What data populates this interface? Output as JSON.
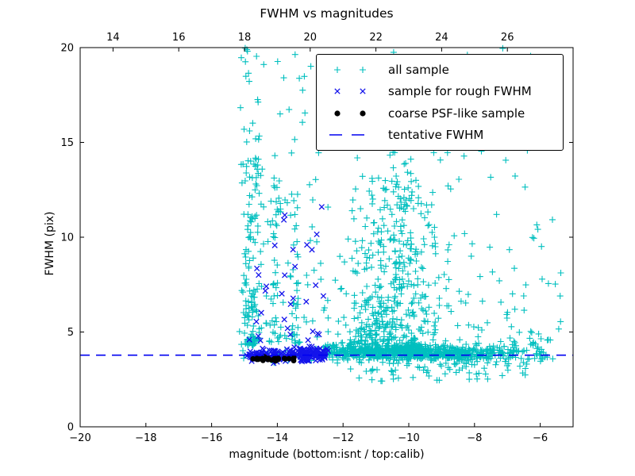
{
  "title": "FWHM vs magnitudes",
  "axes": {
    "xlabel": "magnitude (bottom:isnt / top:calib)",
    "ylabel": "FWHM (pix)",
    "x_bottom": {
      "min": -20,
      "max": -5,
      "ticks": [
        -20,
        -18,
        -16,
        -14,
        -12,
        -10,
        -8,
        -6
      ],
      "labels": [
        "−20",
        "−18",
        "−16",
        "−14",
        "−12",
        "−10",
        "−8",
        "−6"
      ]
    },
    "x_top": {
      "min": 13,
      "max": 28,
      "ticks": [
        14,
        16,
        18,
        20,
        22,
        24,
        26
      ],
      "labels": [
        "14",
        "16",
        "18",
        "20",
        "22",
        "24",
        "26"
      ]
    },
    "y": {
      "min": 0,
      "max": 20,
      "ticks": [
        0,
        5,
        10,
        15,
        20
      ],
      "labels": [
        "0",
        "5",
        "10",
        "15",
        "20"
      ]
    }
  },
  "legend": {
    "entries": [
      {
        "label": "all sample",
        "marker": "plus",
        "color": "#00BFBF"
      },
      {
        "label": "sample for rough FWHM",
        "marker": "x",
        "color": "#1414EB"
      },
      {
        "label": "coarse PSF-like sample",
        "marker": "dot",
        "color": "#000000"
      },
      {
        "label": "tentative FWHM",
        "marker": "dash",
        "color": "#0000F0"
      }
    ]
  },
  "chart_data": {
    "type": "scatter",
    "title": "FWHM vs magnitudes",
    "xlabel": "magnitude (bottom:isnt / top:calib)",
    "ylabel": "FWHM (pix)",
    "xlim": [
      -20,
      -5
    ],
    "ylim": [
      0,
      20
    ],
    "x_top_lim": [
      13,
      28
    ],
    "grid": false,
    "legend_position": "upper right",
    "tentative_fwhm_line": {
      "y": 3.78,
      "style": "dashed",
      "color": "#0000F0"
    },
    "seed": 20240611,
    "series": [
      {
        "name": "all sample",
        "marker": "plus",
        "color": "#00BFBF",
        "clusters": [
          {
            "n": 20,
            "x": {
              "dist": "uniform",
              "min": -15.15,
              "max": -14.5
            },
            "y": {
              "dist": "uniform",
              "min": 12.5,
              "max": 20.1
            }
          },
          {
            "n": 22,
            "x": {
              "dist": "normal",
              "mu": -14.68,
              "sigma": 0.09,
              "min": -15.1,
              "max": -14.3
            },
            "y": {
              "dist": "uniform",
              "min": 10.8,
              "max": 14.2
            }
          },
          {
            "n": 95,
            "x": {
              "dist": "normal",
              "mu": -14.8,
              "sigma": 0.13,
              "min": -15.2,
              "max": -14.4
            },
            "y": {
              "dist": "powlow",
              "min": 4.3,
              "range": 7.0,
              "exp": 2.0
            }
          },
          {
            "n": 40,
            "x": {
              "dist": "normal",
              "mu": -14.05,
              "sigma": 0.07,
              "min": -14.3,
              "max": -13.8
            },
            "y": {
              "dist": "powlow",
              "min": 4.4,
              "range": 9.0,
              "exp": 1.8
            }
          },
          {
            "n": 35,
            "x": {
              "dist": "normal",
              "mu": -13.45,
              "sigma": 0.08,
              "min": -13.7,
              "max": -13.2
            },
            "y": {
              "dist": "powlow",
              "min": 4.4,
              "range": 8.0,
              "exp": 2.0
            }
          },
          {
            "n": 95,
            "x": {
              "dist": "uniform",
              "min": -15.1,
              "max": -12.35
            },
            "y": {
              "dist": "powlow",
              "min": 4.5,
              "range": 15.6,
              "exp": 1.6
            }
          },
          {
            "n": 420,
            "x": {
              "dist": "normal",
              "mu": -10.55,
              "sigma": 0.75,
              "min": -12.3,
              "max": -8.4
            },
            "y": {
              "dist": "powlow",
              "min": 4.0,
              "range": 9.5,
              "exp": 2.6
            }
          },
          {
            "n": 180,
            "x": {
              "dist": "normal",
              "mu": -10.3,
              "sigma": 1.05,
              "min": -12.3,
              "max": -7.6
            },
            "y": {
              "dist": "powlow",
              "min": 4.2,
              "range": 12.0,
              "exp": 2.0
            }
          },
          {
            "n": 55,
            "x": {
              "dist": "uniform",
              "min": -8.9,
              "max": -5.35
            },
            "y": {
              "dist": "powlow",
              "min": 4.5,
              "range": 15.5,
              "exp": 1.15
            }
          },
          {
            "n": 25,
            "x": {
              "dist": "uniform",
              "min": -12.4,
              "max": -6.2
            },
            "y": {
              "dist": "uniform",
              "min": 14.0,
              "max": 20.0
            }
          },
          {
            "n": 340,
            "x": {
              "dist": "normal",
              "mu": -9.9,
              "sigma": 1.35,
              "min": -12.6,
              "max": -6.4
            },
            "y": {
              "dist": "normal",
              "mu": 3.85,
              "sigma": 0.16,
              "min": 3.3,
              "max": 4.4
            }
          },
          {
            "n": 180,
            "x": {
              "dist": "uniform",
              "min": -12.6,
              "max": -7.0
            },
            "y": {
              "dist": "normal",
              "mu": 3.85,
              "sigma": 0.2,
              "min": 3.2,
              "max": 4.5
            }
          },
          {
            "n": 100,
            "x": {
              "dist": "uniform",
              "min": -15.05,
              "max": -5.45
            },
            "y": {
              "dist": "normal",
              "mu": 3.8,
              "sigma": 0.18,
              "min": 3.2,
              "max": 4.4
            }
          },
          {
            "n": 120,
            "x": {
              "dist": "uniform",
              "min": -12.6,
              "max": -9.5
            },
            "y": {
              "dist": "normal",
              "mu": 4.15,
              "sigma": 0.18,
              "min": 3.6,
              "max": 4.8
            }
          },
          {
            "n": 50,
            "x": {
              "dist": "normal",
              "mu": -9.6,
              "sigma": 1.1,
              "min": -11.8,
              "max": -6.6
            },
            "y": {
              "dist": "uniform",
              "min": 2.4,
              "max": 3.4
            }
          },
          {
            "n": 70,
            "x": {
              "dist": "uniform",
              "min": -8.6,
              "max": -5.8
            },
            "y": {
              "dist": "normal",
              "mu": 3.8,
              "sigma": 0.5,
              "min": 2.5,
              "max": 5.4
            }
          },
          {
            "n": 18,
            "x": {
              "dist": "uniform",
              "min": -7.3,
              "max": -5.3
            },
            "y": {
              "dist": "uniform",
              "min": 3.1,
              "max": 7.8
            }
          }
        ]
      },
      {
        "name": "sample for rough FWHM",
        "marker": "x",
        "color": "#1414EB",
        "clusters": [
          {
            "n": 150,
            "x": {
              "dist": "uniform",
              "min": -14.95,
              "max": -12.55
            },
            "y": {
              "dist": "normal",
              "mu": 3.8,
              "sigma": 0.17,
              "min": 3.3,
              "max": 4.35
            }
          },
          {
            "n": 60,
            "x": {
              "dist": "normal",
              "mu": -12.95,
              "sigma": 0.35,
              "min": -13.8,
              "max": -12.45
            },
            "y": {
              "dist": "normal",
              "mu": 3.85,
              "sigma": 0.2,
              "min": 3.3,
              "max": 4.4
            }
          },
          {
            "n": 26,
            "x": {
              "dist": "uniform",
              "min": -14.7,
              "max": -12.5
            },
            "y": {
              "dist": "powlow",
              "min": 4.4,
              "range": 7.6,
              "exp": 1.5
            }
          }
        ],
        "points": [
          [
            -12.65,
            11.6
          ],
          [
            -12.8,
            10.15
          ],
          [
            -14.62,
            8.35
          ],
          [
            -13.1,
            9.6
          ],
          [
            -12.6,
            6.9
          ],
          [
            -14.85,
            4.6
          ]
        ]
      },
      {
        "name": "coarse PSF-like sample",
        "marker": "dot",
        "color": "#000000",
        "clusters": [
          {
            "n": 24,
            "x": {
              "dist": "uniform",
              "min": -14.85,
              "max": -13.42
            },
            "y": {
              "dist": "normal",
              "mu": 3.58,
              "sigma": 0.05,
              "min": 3.45,
              "max": 3.72
            }
          }
        ]
      },
      {
        "name": "tentative FWHM",
        "type": "hline",
        "y": 3.78,
        "color": "#0000F0",
        "dash": [
          12,
          8
        ]
      }
    ]
  }
}
